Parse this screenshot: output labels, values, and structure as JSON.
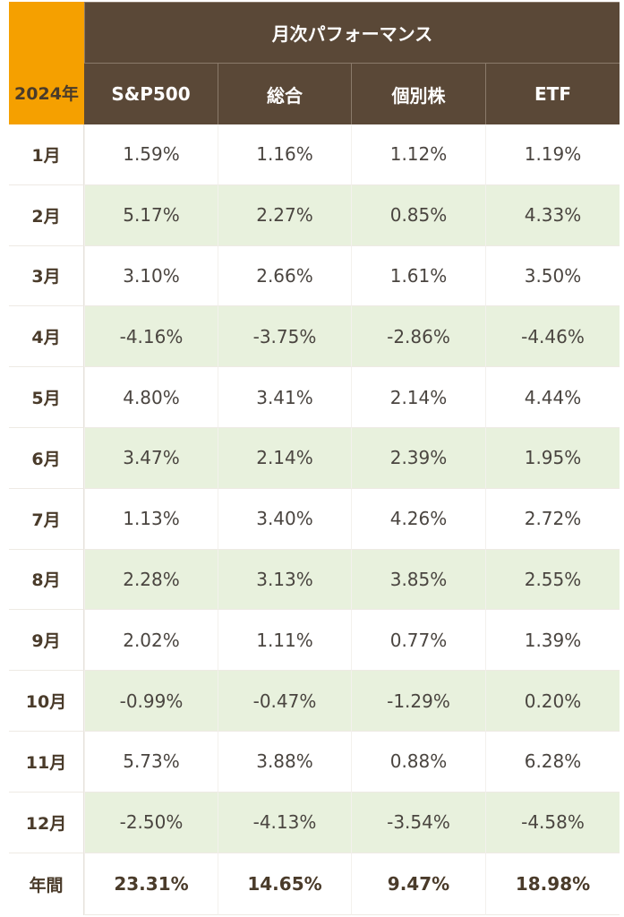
{
  "table": {
    "corner_label": "2024年",
    "group_header": "月次パフォーマンス",
    "columns": [
      "S&P500",
      "総合",
      "個別株",
      "ETF"
    ],
    "rows": [
      {
        "month": "1月",
        "values": [
          "1.59%",
          "1.16%",
          "1.12%",
          "1.19%"
        ]
      },
      {
        "month": "2月",
        "values": [
          "5.17%",
          "2.27%",
          "0.85%",
          "4.33%"
        ]
      },
      {
        "month": "3月",
        "values": [
          "3.10%",
          "2.66%",
          "1.61%",
          "3.50%"
        ]
      },
      {
        "month": "4月",
        "values": [
          "-4.16%",
          "-3.75%",
          "-2.86%",
          "-4.46%"
        ]
      },
      {
        "month": "5月",
        "values": [
          "4.80%",
          "3.41%",
          "2.14%",
          "4.44%"
        ]
      },
      {
        "month": "6月",
        "values": [
          "3.47%",
          "2.14%",
          "2.39%",
          "1.95%"
        ]
      },
      {
        "month": "7月",
        "values": [
          "1.13%",
          "3.40%",
          "4.26%",
          "2.72%"
        ]
      },
      {
        "month": "8月",
        "values": [
          "2.28%",
          "3.13%",
          "3.85%",
          "2.55%"
        ]
      },
      {
        "month": "9月",
        "values": [
          "2.02%",
          "1.11%",
          "0.77%",
          "1.39%"
        ]
      },
      {
        "month": "10月",
        "values": [
          "-0.99%",
          "-0.47%",
          "-1.29%",
          "0.20%"
        ]
      },
      {
        "month": "11月",
        "values": [
          "5.73%",
          "3.88%",
          "0.88%",
          "6.28%"
        ]
      },
      {
        "month": "12月",
        "values": [
          "-2.50%",
          "-4.13%",
          "-3.54%",
          "-4.58%"
        ]
      }
    ],
    "total": {
      "label": "年間",
      "values": [
        "23.31%",
        "14.65%",
        "9.47%",
        "18.98%"
      ]
    }
  },
  "colors": {
    "corner": "#f5a000",
    "header": "#5a4837",
    "stripe": "#e8f1dd",
    "text": "#4a4540"
  }
}
